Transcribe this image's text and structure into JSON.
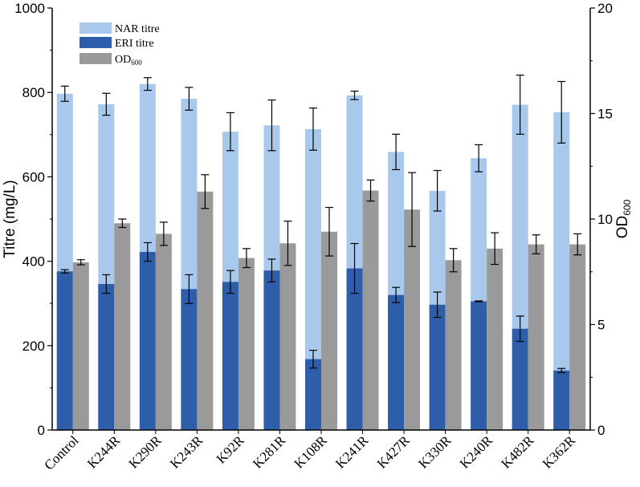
{
  "chart_data": {
    "type": "bar",
    "categories": [
      "Control",
      "K244R",
      "K290R",
      "K243R",
      "K92R",
      "K281R",
      "K108R",
      "K241R",
      "K427R",
      "K330R",
      "K240R",
      "K482R",
      "K362R"
    ],
    "series": [
      {
        "name": "NAR titre",
        "axis": "left",
        "color": "#a9c9ec",
        "values": [
          797,
          772,
          820,
          785,
          707,
          722,
          713,
          793,
          659,
          567,
          644,
          771,
          753
        ],
        "errors": [
          18,
          26,
          15,
          27,
          45,
          60,
          50,
          10,
          42,
          48,
          32,
          70,
          73
        ]
      },
      {
        "name": "ERI  titre",
        "axis": "left",
        "color": "#2e5eaa",
        "values": [
          376,
          346,
          422,
          334,
          351,
          378,
          168,
          383,
          320,
          297,
          305,
          240,
          141
        ],
        "errors": [
          4,
          22,
          22,
          34,
          27,
          27,
          21,
          59,
          18,
          30,
          1,
          30,
          5
        ]
      },
      {
        "name": "OD600",
        "name_main": "OD",
        "name_sub": "600",
        "axis": "right",
        "color": "#9a9a9a",
        "values": [
          7.95,
          9.8,
          9.3,
          11.3,
          8.15,
          8.85,
          9.4,
          11.35,
          10.45,
          8.05,
          8.6,
          8.8,
          8.8
        ],
        "errors": [
          0.12,
          0.2,
          0.55,
          0.8,
          0.45,
          1.05,
          1.15,
          0.5,
          1.75,
          0.55,
          0.75,
          0.45,
          0.5
        ]
      }
    ],
    "ylabel": "Titre (mg/L)",
    "ylim": [
      0,
      1000
    ],
    "yticks": [
      "0",
      "200",
      "400",
      "600",
      "800",
      "1000"
    ],
    "y2label": "OD",
    "y2label_sub": "600",
    "y2lim": [
      0,
      20
    ],
    "y2ticks": [
      "0",
      "5",
      "10",
      "15",
      "20"
    ],
    "legend_position": "top-left",
    "grid": false
  }
}
